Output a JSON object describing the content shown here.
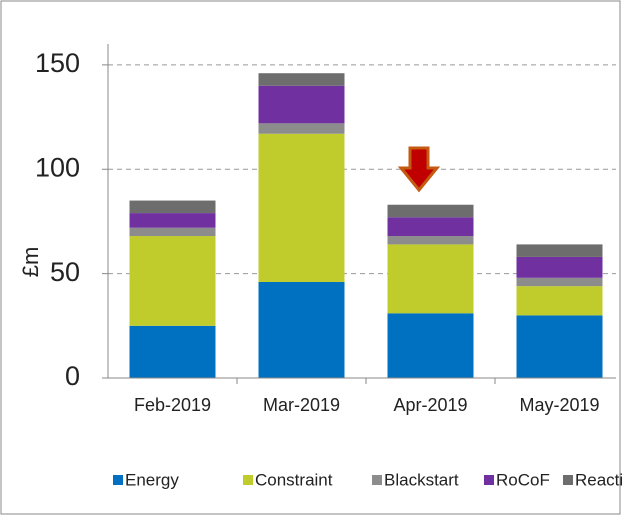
{
  "chart_data": {
    "type": "stacked_bar",
    "y_label": "£m",
    "categories": [
      "Feb-2019",
      "Mar-2019",
      "Apr-2019",
      "May-2019"
    ],
    "series": [
      {
        "name": "Energy",
        "color": "#0070c0",
        "values": [
          25,
          46,
          31,
          30
        ]
      },
      {
        "name": "Constraint",
        "color": "#bfcc2c",
        "values": [
          43,
          71,
          33,
          14
        ]
      },
      {
        "name": "Blackstart",
        "color": "#8c8c8c",
        "values": [
          4,
          5,
          4,
          4
        ]
      },
      {
        "name": "RoCoF",
        "color": "#7030a0",
        "values": [
          7,
          18,
          9,
          10
        ]
      },
      {
        "name": "Reactive",
        "color": "#6d6d6d",
        "values": [
          6,
          6,
          6,
          6
        ]
      }
    ],
    "ylim": [
      0,
      160
    ],
    "yticks": [
      0,
      50,
      100,
      150
    ],
    "grid": true,
    "legend": "bottom"
  }
}
